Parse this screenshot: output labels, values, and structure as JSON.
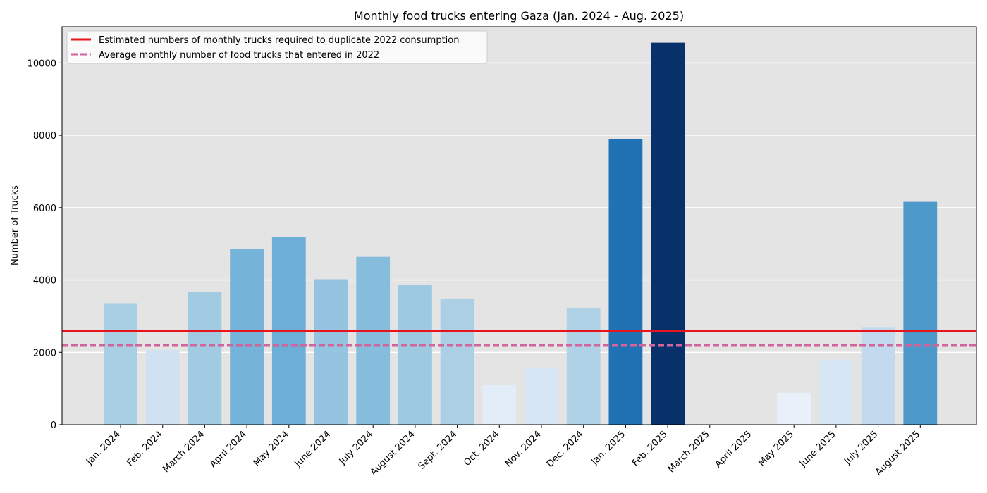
{
  "chart_data": {
    "type": "bar",
    "title": "Monthly food trucks entering Gaza (Jan. 2024 - Aug. 2025)",
    "xlabel": "",
    "ylabel": "Number of Trucks",
    "ylim": [
      0,
      11000
    ],
    "yticks": [
      0,
      2000,
      4000,
      6000,
      8000,
      10000
    ],
    "grid": true,
    "categories": [
      "Jan. 2024",
      "Feb. 2024",
      "March 2024",
      "April 2024",
      "May 2024",
      "June 2024",
      "July 2024",
      "August 2024",
      "Sept. 2024",
      "Oct. 2024",
      "Nov. 2024",
      "Dec. 2024",
      "Jan. 2025",
      "Feb. 2025",
      "March 2025",
      "April 2025",
      "May 2025",
      "June 2025",
      "July 2025",
      "August 2025"
    ],
    "values": [
      3360,
      2060,
      3680,
      4850,
      5180,
      4020,
      4640,
      3870,
      3470,
      1100,
      1580,
      3220,
      7900,
      10560,
      0,
      0,
      880,
      1800,
      2680,
      6160
    ],
    "colors": [
      "#a9cfe5",
      "#d0e1f2",
      "#a0cbe2",
      "#75b4d8",
      "#6caed6",
      "#94c4df",
      "#86bcdc",
      "#9dcae1",
      "#abd0e6",
      "#e2edf8",
      "#d7e6f5",
      "#b0d2e7",
      "#2171b5",
      "#08306b",
      "#f7fbff",
      "#f7fbff",
      "#e8f1fa",
      "#d6e6f4",
      "#c2d9ee",
      "#4d99ca"
    ],
    "reference_lines": [
      {
        "label": "Estimated numbers of monthly trucks required to duplicate 2022 consumption",
        "value": 2600,
        "style": "solid",
        "color": "#e8141c"
      },
      {
        "label": "Average monthly number of food trucks that entered in 2022",
        "value": 2200,
        "style": "dashed",
        "color": "#d0649c"
      }
    ],
    "legend_position": "top-left",
    "plot_background": "#e4e4e4"
  }
}
